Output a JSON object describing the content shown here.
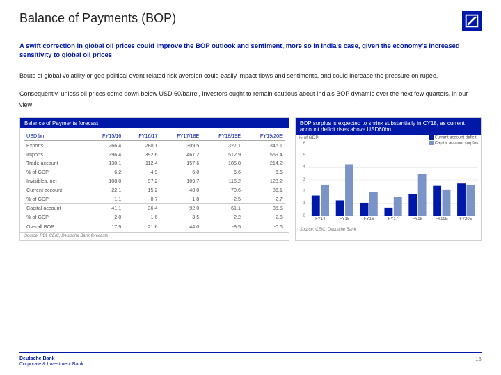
{
  "title": "Balance of Payments (BOP)",
  "subtitle": "A swift correction in global oil prices could improve the BOP outlook and sentiment, more so in India's case, given the economy's increased sensitivity to global oil prices",
  "para1": "Bouts of global volatility or geo-political event related risk aversion could easily impact flows and sentiments, and could increase the pressure on rupee.",
  "para2": "Consequently, unless oil prices come down below USD 60/barrel, investors ought to remain cautious about India's BOP dynamic over the next few quarters, in our view",
  "table": {
    "header": "Balance of Payments forecast",
    "unit": "USD bn",
    "cols": [
      "FY15/16",
      "FY16/17",
      "FY17/18E",
      "FY18/19E",
      "FY19/20E"
    ],
    "rows": [
      {
        "label": "Exports",
        "v": [
          "266.4",
          "280.1",
          "309.5",
          "327.1",
          "345.1"
        ]
      },
      {
        "label": "Imports",
        "v": [
          "396.4",
          "392.6",
          "467.2",
          "512.9",
          "559.4"
        ]
      },
      {
        "label": "Trade account",
        "v": [
          "-130.1",
          "-112.4",
          "-157.6",
          "-185.8",
          "-214.2"
        ]
      },
      {
        "label": "% of GDP",
        "v": [
          "6.2",
          "4.9",
          "6.0",
          "6.6",
          "6.6"
        ]
      },
      {
        "label": "Invisibles, net",
        "v": [
          "108.0",
          "97.2",
          "109.7",
          "115.2",
          "128.2"
        ]
      },
      {
        "label": "Current account",
        "v": [
          "-22.1",
          "-15.2",
          "-48.0",
          "-70.6",
          "-86.1"
        ],
        "rule": true
      },
      {
        "label": "% of GDP",
        "v": [
          "-1.1",
          "-0.7",
          "-1.8",
          "-2.5",
          "-2.7"
        ]
      },
      {
        "label": "Capital account",
        "v": [
          "41.1",
          "36.4",
          "92.0",
          "61.1",
          "85.5"
        ],
        "rule": true
      },
      {
        "label": "% of GDP",
        "v": [
          "2.0",
          "1.6",
          "3.5",
          "2.2",
          "2.6"
        ]
      },
      {
        "label": "Overall BOP",
        "v": [
          "17.9",
          "21.6",
          "44.0",
          "-9.5",
          "-0.6"
        ],
        "rule": true
      }
    ],
    "footer": "Source: RBI, CEIC, Deutsche Bank forecasts"
  },
  "chart": {
    "header": "BOP surplus is expected to shrink substantially in CY18, as current account deficit rises above USD60bn",
    "ylabel": "% of GDP",
    "ylim": [
      0,
      6
    ],
    "ytick_step": 1,
    "categories": [
      "FY14",
      "FY15",
      "FY16",
      "FY17",
      "FY18",
      "FY19E",
      "FY20E"
    ],
    "series": [
      {
        "name": "Current account deficit",
        "color": "#0018a8",
        "values": [
          1.7,
          1.3,
          1.1,
          0.7,
          1.8,
          2.5,
          2.7
        ]
      },
      {
        "name": "Capital account surplus",
        "color": "#7a94c8",
        "values": [
          2.6,
          4.3,
          2.0,
          1.6,
          3.5,
          2.2,
          2.6
        ]
      }
    ],
    "bar_width": 0.34,
    "grid_color": "#dddddd",
    "footer": "Source: CEIC, Deutsche Bank"
  },
  "footer": {
    "line1": "Deutsche Bank",
    "line2": "Corporate & Investment Bank",
    "page": "13"
  }
}
